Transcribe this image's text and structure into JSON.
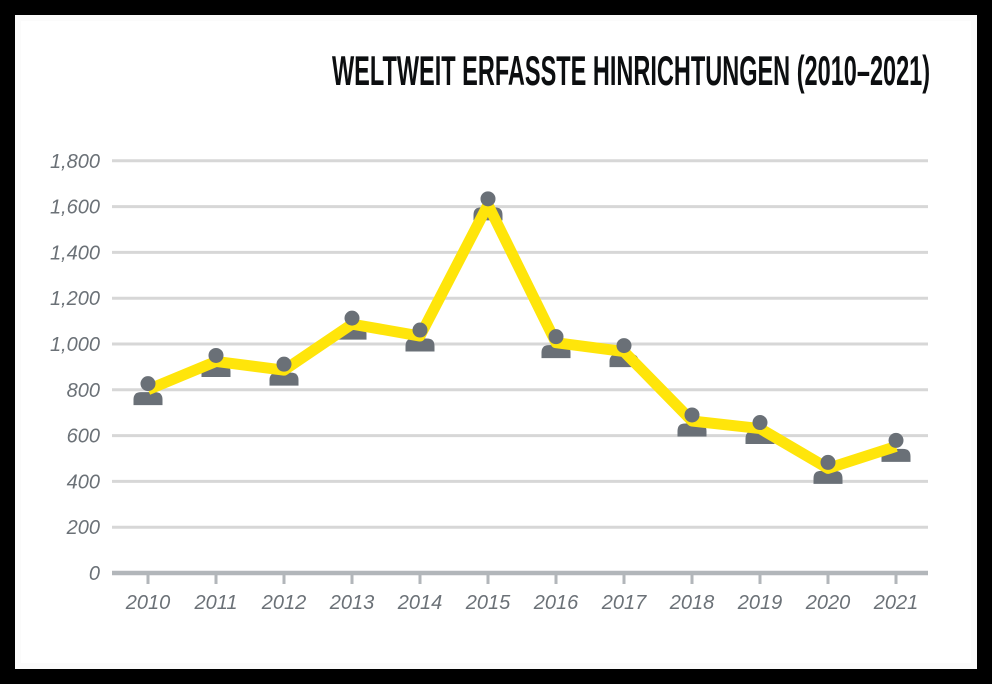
{
  "chart_data": {
    "type": "line",
    "title": "WELTWEIT ERFASSTE HINRICHTUNGEN (2010–2021)",
    "categories": [
      "2010",
      "2011",
      "2012",
      "2013",
      "2014",
      "2015",
      "2016",
      "2017",
      "2018",
      "2019",
      "2020",
      "2021"
    ],
    "values": [
      827,
      950,
      912,
      1113,
      1061,
      1634,
      1032,
      993,
      690,
      657,
      483,
      579
    ],
    "xlabel": "",
    "ylabel": "",
    "ylim": [
      0,
      1800
    ],
    "y_ticks": {
      "values": [
        0,
        200,
        400,
        600,
        800,
        1000,
        1200,
        1400,
        1600,
        1800
      ],
      "labels": [
        "0",
        "200",
        "400",
        "600",
        "800",
        "1,000",
        "1,200",
        "1,400",
        "1,600",
        "1,800"
      ]
    },
    "grid": "horizontal",
    "legend": "none",
    "marker": "person-icon",
    "line_color": "#FFE50A",
    "marker_color": "#6A7077",
    "label_color": "#6B7177",
    "grid_color": "#D7D7D7",
    "axis_color": "#B2B6BA",
    "title_color": "#0C0E10",
    "frame_color": "#000000"
  }
}
